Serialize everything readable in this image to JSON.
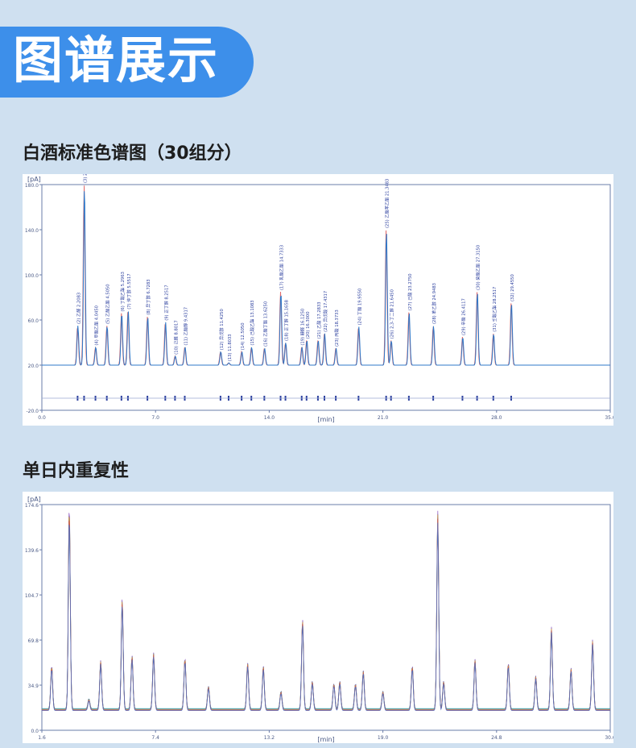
{
  "header": {
    "title": "图谱展示"
  },
  "sections": [
    {
      "title": "白酒标准色谱图（30组分）"
    },
    {
      "title": "单日内重复性"
    }
  ],
  "chart_data": [
    {
      "type": "line",
      "ylabel": "[pA]",
      "xlabel": "[min]",
      "xlim": [
        0,
        35
      ],
      "ylim": [
        -20,
        180
      ],
      "x_ticks": [
        "0.0",
        "7.0",
        "14.0",
        "21.0",
        "28.0",
        "35.0"
      ],
      "y_ticks": [
        "-20.0",
        "20.0",
        "60.0",
        "100.0",
        "140.0",
        "180.0"
      ],
      "baseline": 20,
      "series_colors": [
        "#e06a6a",
        "#2f78c8"
      ],
      "peaks": [
        {
          "rt": 2.2,
          "h": 55,
          "label": "(2) 乙醛 2.2083"
        },
        {
          "rt": 2.6,
          "h": 180,
          "label": "(3) 2.6083"
        },
        {
          "rt": 3.3,
          "h": 36,
          "label": "(4) 甲酸乙酯 4.0450"
        },
        {
          "rt": 4.0,
          "h": 55,
          "label": "(5) 乙酸乙酯 4.5050"
        },
        {
          "rt": 4.9,
          "h": 66,
          "label": "(6) 丁酸乙酯 5.2963"
        },
        {
          "rt": 5.3,
          "h": 68,
          "label": "(7) 仲丁醇 5.5517"
        },
        {
          "rt": 6.5,
          "h": 63,
          "label": "(8) 异丁醇 6.7283"
        },
        {
          "rt": 7.6,
          "h": 58,
          "label": "(9) 正丁醇 8.2517"
        },
        {
          "rt": 8.2,
          "h": 28,
          "label": "(10) 己醛 8.8017"
        },
        {
          "rt": 8.8,
          "h": 36,
          "label": "(11) 乙酸醇 9.4317"
        },
        {
          "rt": 11.0,
          "h": 32,
          "label": "(12) 异戊醇 11.4250"
        },
        {
          "rt": 11.5,
          "h": 22,
          "label": "(13) 11.8033"
        },
        {
          "rt": 12.3,
          "h": 32,
          "label": "(14) 12.5050"
        },
        {
          "rt": 12.9,
          "h": 36,
          "label": "(15) 己酸乙酯 13.1083"
        },
        {
          "rt": 13.7,
          "h": 35,
          "label": "(16) 乙酸丁酯 13.6250"
        },
        {
          "rt": 14.7,
          "h": 85,
          "label": "(17) 乳酸乙酯 14.7333"
        },
        {
          "rt": 15.0,
          "h": 40,
          "label": "(18) 正丁醇 15.1658"
        },
        {
          "rt": 16.0,
          "h": 36,
          "label": "(19) 糠醛 16.1250"
        },
        {
          "rt": 16.3,
          "h": 42,
          "label": "(20) 16.3000"
        },
        {
          "rt": 17.0,
          "h": 42,
          "label": "(21) 乙酸 17.2833"
        },
        {
          "rt": 17.4,
          "h": 48,
          "label": "(22) 异戊酸 17.4317"
        },
        {
          "rt": 18.1,
          "h": 35,
          "label": "(23) 丙酸 18.3733"
        },
        {
          "rt": 19.5,
          "h": 54,
          "label": "(24) 丁酸 19.9550"
        },
        {
          "rt": 21.2,
          "h": 140,
          "label": "(25) 乙酸苯乙酯 21.3483"
        },
        {
          "rt": 21.5,
          "h": 42,
          "label": "(26) 2,3-丁二醇 21.6450"
        },
        {
          "rt": 22.6,
          "h": 67,
          "label": "(27) 己酸 23.2750"
        },
        {
          "rt": 24.1,
          "h": 55,
          "label": "(28) 苯乙醇 24.9483"
        },
        {
          "rt": 25.9,
          "h": 45,
          "label": "(29) 辛酸 26.4117"
        },
        {
          "rt": 26.8,
          "h": 85,
          "label": "(30) 癸酸乙酯 27.3150"
        },
        {
          "rt": 27.8,
          "h": 48,
          "label": "(31) 壬酸乙酯 28.2517"
        },
        {
          "rt": 28.9,
          "h": 75,
          "label": "(32) 29.4550"
        }
      ]
    },
    {
      "type": "line",
      "ylabel": "[pA]",
      "xlabel": "[min]",
      "xlim": [
        1.6,
        30.6
      ],
      "ylim": [
        0,
        174.6
      ],
      "x_ticks": [
        "1.6",
        "7.4",
        "13.2",
        "19.0",
        "24.8",
        "30.6"
      ],
      "y_ticks": [
        "0.0",
        "34.9",
        "69.8",
        "104.7",
        "139.6",
        "174.6"
      ],
      "baseline": 16,
      "series_colors": [
        "#1aa3b8",
        "#4aa86a",
        "#8a4fc0",
        "#e0a030",
        "#d04a4a",
        "#3a6ed0"
      ],
      "peaks": [
        {
          "rt": 2.1,
          "h": 50
        },
        {
          "rt": 3.0,
          "h": 174.6
        },
        {
          "rt": 4.0,
          "h": 24
        },
        {
          "rt": 4.6,
          "h": 54
        },
        {
          "rt": 5.7,
          "h": 102
        },
        {
          "rt": 6.2,
          "h": 58
        },
        {
          "rt": 7.3,
          "h": 60
        },
        {
          "rt": 8.9,
          "h": 56
        },
        {
          "rt": 10.1,
          "h": 34
        },
        {
          "rt": 12.1,
          "h": 52
        },
        {
          "rt": 12.9,
          "h": 50
        },
        {
          "rt": 13.8,
          "h": 30
        },
        {
          "rt": 14.9,
          "h": 86
        },
        {
          "rt": 15.4,
          "h": 38
        },
        {
          "rt": 16.5,
          "h": 36
        },
        {
          "rt": 16.8,
          "h": 38
        },
        {
          "rt": 17.6,
          "h": 36
        },
        {
          "rt": 18.0,
          "h": 46
        },
        {
          "rt": 19.0,
          "h": 30
        },
        {
          "rt": 20.5,
          "h": 50
        },
        {
          "rt": 21.8,
          "h": 170
        },
        {
          "rt": 22.1,
          "h": 38
        },
        {
          "rt": 23.7,
          "h": 55
        },
        {
          "rt": 25.4,
          "h": 52
        },
        {
          "rt": 26.8,
          "h": 42
        },
        {
          "rt": 27.6,
          "h": 80
        },
        {
          "rt": 28.6,
          "h": 48
        },
        {
          "rt": 29.7,
          "h": 70
        }
      ]
    }
  ]
}
